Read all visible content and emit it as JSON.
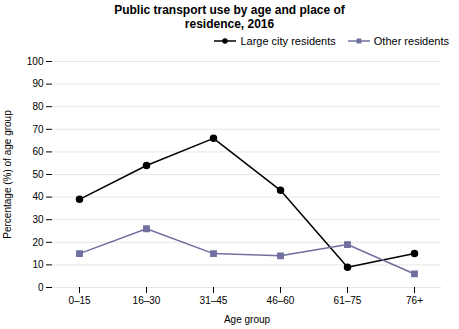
{
  "chart_data": {
    "type": "line",
    "title": "Public transport use by age and place of\nresidence, 2016",
    "xlabel": "Age group",
    "ylabel": "Percentage (%) of age group",
    "categories": [
      "0–15",
      "16–30",
      "31–45",
      "46–60",
      "61–75",
      "76+"
    ],
    "series": [
      {
        "name": "Large city residents",
        "color": "#000000",
        "marker": "circle",
        "values": [
          39,
          54,
          66,
          43,
          9,
          15
        ]
      },
      {
        "name": "Other residents",
        "color": "#7070a0",
        "marker": "square",
        "values": [
          15,
          26,
          15,
          14,
          19,
          6
        ]
      }
    ],
    "ylim": [
      0,
      100
    ],
    "yticks": [
      0,
      10,
      20,
      30,
      40,
      50,
      60,
      70,
      80,
      90,
      100
    ],
    "grid": true,
    "legend": "upper right"
  }
}
